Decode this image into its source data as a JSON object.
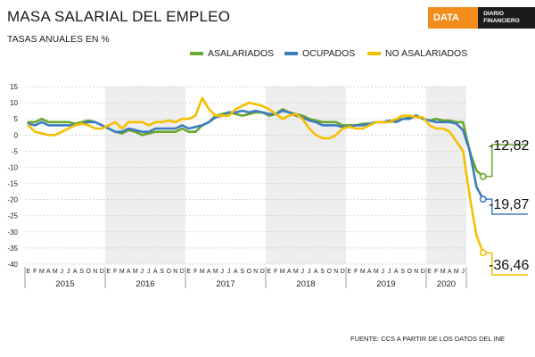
{
  "header": {
    "title": "MASA SALARIAL DEL EMPLEO",
    "subtitle": "TASAS ANUALES EN %",
    "logo_left": "DATA DF",
    "logo_right": "DIARIO FINANCIERO"
  },
  "source": "FUENTE: CCS A PARTIR DE LOS DATOS DEL INE",
  "colors": {
    "asalariados": "#6aa82e",
    "ocupados": "#3d7cbf",
    "no_asalariados": "#f5c000",
    "band": "#eeeeee",
    "grid": "#c8c8c8"
  },
  "chart_data": {
    "type": "line",
    "ylim": [
      -40,
      15
    ],
    "yticks": [
      15,
      10,
      5,
      0,
      -5,
      -10,
      -15,
      -20,
      -25,
      -30,
      -35,
      -40
    ],
    "month_letters": [
      "E",
      "F",
      "M",
      "A",
      "M",
      "J",
      "J",
      "A",
      "S",
      "O",
      "N",
      "D"
    ],
    "years": [
      "2015",
      "2016",
      "2017",
      "2018",
      "2019",
      "2020"
    ],
    "last_months": 6,
    "legend": "top",
    "end_labels": [
      {
        "series": 0,
        "text": "-12,82"
      },
      {
        "series": 1,
        "text": "-19,87"
      },
      {
        "series": 2,
        "text": "-36,46"
      }
    ],
    "series": [
      {
        "name": "ASALARIADOS",
        "values": [
          4,
          4,
          5,
          4,
          4,
          4,
          4,
          3.5,
          4,
          4.5,
          4,
          3,
          2,
          1,
          0.5,
          1.5,
          1,
          0,
          0.5,
          1,
          1,
          1,
          1,
          2,
          1,
          1,
          3,
          4,
          6,
          6.5,
          7,
          6.5,
          6,
          6.5,
          7,
          7,
          6,
          6.5,
          8,
          7,
          6.5,
          6,
          5,
          4.5,
          4,
          4,
          4,
          3,
          3,
          3,
          3.5,
          3.5,
          4,
          4,
          4,
          4.5,
          5,
          5.5,
          6,
          5,
          4.5,
          5,
          4.5,
          4.5,
          4,
          4,
          -5,
          -11,
          -12.82
        ]
      },
      {
        "name": "OCUPADOS",
        "values": [
          3.5,
          3,
          4,
          3,
          3,
          3,
          3,
          3,
          3.5,
          4,
          4,
          3,
          2,
          1,
          1,
          2,
          1.5,
          1,
          1,
          2,
          2,
          2,
          2,
          3,
          2,
          2.5,
          3,
          4,
          5.5,
          6,
          7,
          7,
          7.5,
          7,
          7.5,
          7,
          6.5,
          6.5,
          7.5,
          7,
          6,
          5.5,
          4.5,
          4,
          3,
          3,
          3,
          2.5,
          2.5,
          3,
          3,
          3.5,
          4,
          4,
          4.5,
          4,
          5,
          5,
          6,
          5,
          4.5,
          4,
          4,
          4,
          3.5,
          1.5,
          -5,
          -16,
          -19.87
        ]
      },
      {
        "name": "NO ASALARIADOS",
        "values": [
          3,
          1,
          0.5,
          0,
          0,
          1,
          2,
          3,
          3.5,
          3,
          2,
          2,
          3,
          4,
          2,
          4,
          4,
          4,
          3,
          4,
          4,
          4.5,
          4,
          5,
          5,
          6,
          11.5,
          8,
          6,
          6,
          6,
          8,
          9,
          10,
          9.5,
          9,
          8,
          6.5,
          5,
          6,
          6.5,
          5,
          2,
          0,
          -1,
          -1,
          0,
          2,
          2.5,
          2,
          2,
          3,
          4,
          4,
          4,
          5,
          6,
          6,
          5.5,
          5.5,
          3,
          2,
          2,
          1,
          -2,
          -5,
          -19,
          -31,
          -36.46
        ]
      }
    ]
  }
}
